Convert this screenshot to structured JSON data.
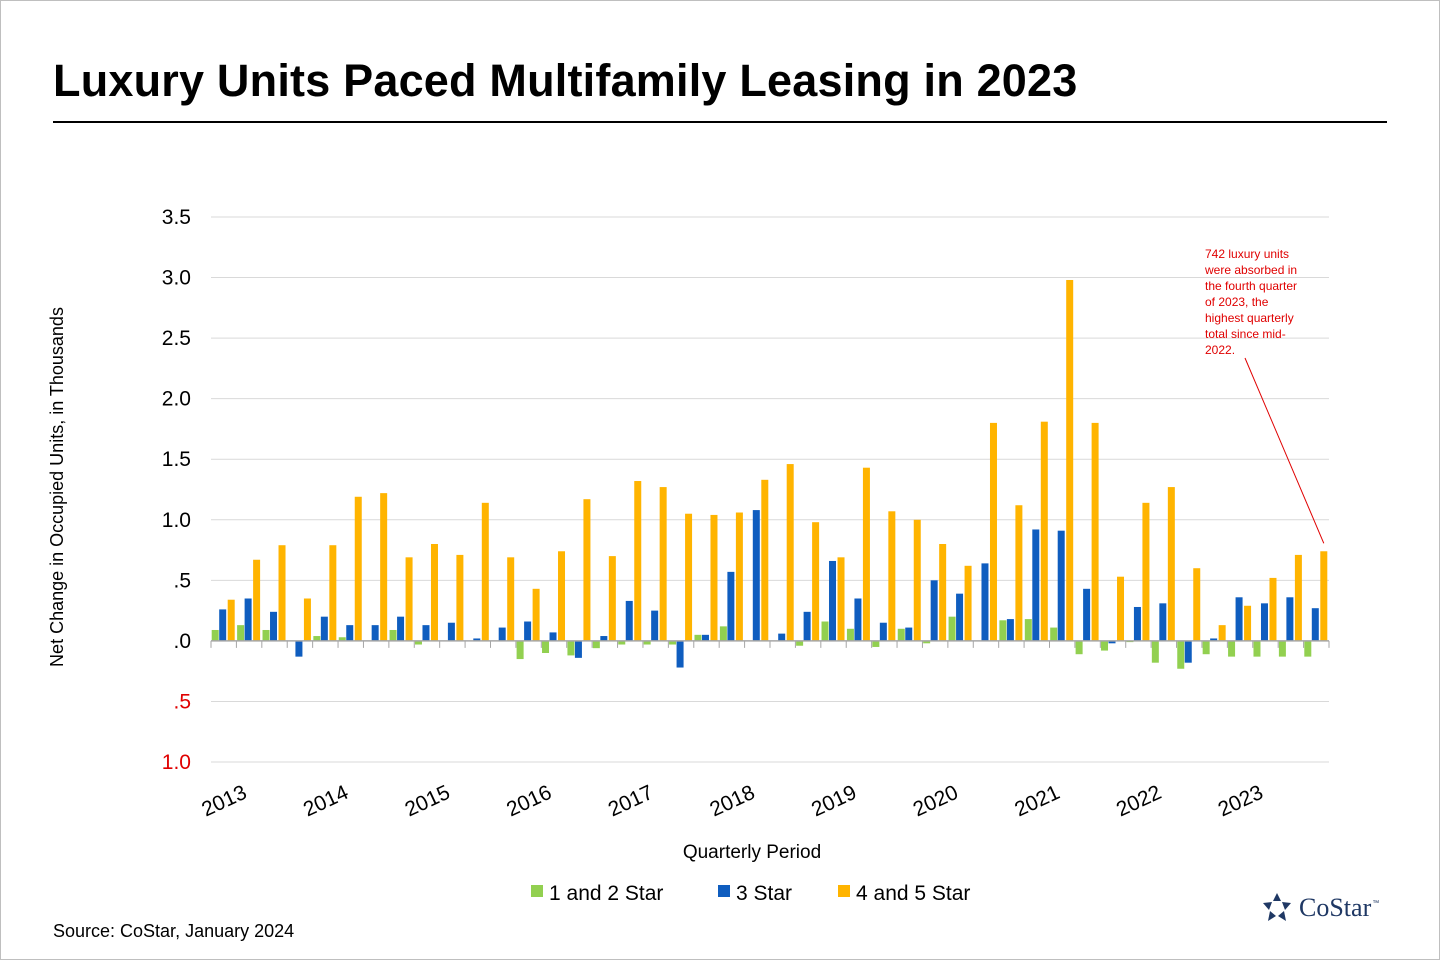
{
  "title": "Luxury Units Paced Multifamily Leasing in 2023",
  "source": "Source: CoStar, January 2024",
  "brand": {
    "name": "CoStar",
    "tm": "™"
  },
  "chart_data": {
    "type": "bar",
    "xlabel": "Quarterly Period",
    "ylabel": "Net Change in Occupied Units, in Thousands",
    "ylim": [
      -1.0,
      3.5
    ],
    "grid": true,
    "legend_position": "bottom",
    "y_tick_labels": [
      {
        "value": 3.5,
        "label": "3.5",
        "color": "#000000"
      },
      {
        "value": 3.0,
        "label": "3.0",
        "color": "#000000"
      },
      {
        "value": 2.5,
        "label": "2.5",
        "color": "#000000"
      },
      {
        "value": 2.0,
        "label": "2.0",
        "color": "#000000"
      },
      {
        "value": 1.5,
        "label": "1.5",
        "color": "#000000"
      },
      {
        "value": 1.0,
        "label": "1.0",
        "color": "#000000"
      },
      {
        "value": 0.5,
        "label": ".5",
        "color": "#000000"
      },
      {
        "value": 0.0,
        "label": ".0",
        "color": "#000000"
      },
      {
        "value": -0.5,
        "label": ".5",
        "color": "#e00000"
      },
      {
        "value": -1.0,
        "label": "1.0",
        "color": "#e00000"
      }
    ],
    "year_labels": [
      "2013",
      "2014",
      "2015",
      "2016",
      "2017",
      "2018",
      "2019",
      "2020",
      "2021",
      "2022",
      "2023"
    ],
    "quarters_per_year": 4,
    "series": [
      {
        "name": "1 and 2 Star",
        "color": "#92d050",
        "values": [
          0.09,
          0.13,
          0.09,
          0.0,
          0.04,
          0.03,
          0.0,
          0.09,
          -0.03,
          0.0,
          0.0,
          0.0,
          -0.15,
          -0.1,
          -0.12,
          -0.06,
          -0.03,
          -0.03,
          -0.03,
          0.05,
          0.12,
          0.0,
          0.0,
          -0.04,
          0.16,
          0.1,
          -0.05,
          0.1,
          -0.02,
          0.2,
          0.0,
          0.17,
          0.18,
          0.11,
          -0.11,
          -0.08,
          -0.01,
          -0.18,
          -0.23,
          -0.11,
          -0.13,
          -0.13,
          -0.13,
          -0.13
        ]
      },
      {
        "name": "3 Star",
        "color": "#0f5dbf",
        "values": [
          0.26,
          0.35,
          0.24,
          -0.13,
          0.2,
          0.13,
          0.13,
          0.2,
          0.13,
          0.15,
          0.02,
          0.11,
          0.16,
          0.07,
          -0.14,
          0.04,
          0.33,
          0.25,
          -0.22,
          0.05,
          0.57,
          1.08,
          0.06,
          0.24,
          0.66,
          0.35,
          0.15,
          0.11,
          0.5,
          0.39,
          0.64,
          0.18,
          0.92,
          0.91,
          0.43,
          -0.02,
          0.28,
          0.31,
          -0.18,
          0.02,
          0.36,
          0.31,
          0.36,
          0.27
        ]
      },
      {
        "name": "4 and 5 Star",
        "color": "#ffb400",
        "values": [
          0.34,
          0.67,
          0.79,
          0.35,
          0.79,
          1.19,
          1.22,
          0.69,
          0.8,
          0.71,
          1.14,
          0.69,
          0.43,
          0.74,
          1.17,
          0.7,
          1.32,
          1.27,
          1.05,
          1.04,
          1.06,
          1.33,
          1.46,
          0.98,
          0.69,
          1.43,
          1.07,
          1.0,
          0.8,
          0.62,
          1.8,
          1.12,
          1.81,
          2.98,
          1.8,
          0.53,
          1.14,
          1.27,
          0.6,
          0.13,
          0.29,
          0.52,
          0.71,
          0.74
        ]
      }
    ],
    "annotation": {
      "text": "742 luxury units were absorbed in the fourth quarter of 2023, the highest quarterly total since mid-2022.",
      "lines": [
        "742 luxury units",
        "were absorbed in",
        "the fourth quarter",
        "of 2023, the",
        "highest quarterly",
        "total since mid-",
        "2022."
      ],
      "color": "#e00000",
      "target_series": 2,
      "target_index": 43
    }
  }
}
